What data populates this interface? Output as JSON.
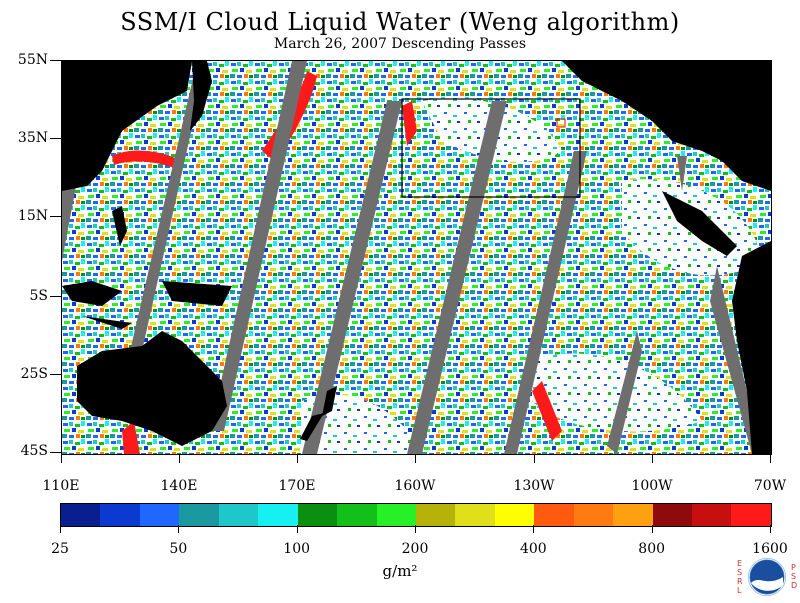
{
  "title": "SSM/I Cloud Liquid Water (Weng algorithm)",
  "subtitle": "March 26, 2007  Descending Passes",
  "lat_labels": [
    "55N",
    "35N",
    "15N",
    "5S",
    "25S",
    "45S"
  ],
  "lon_labels": [
    "110E",
    "140E",
    "170E",
    "160W",
    "130W",
    "100W",
    "70W"
  ],
  "colorbar": {
    "colors": [
      "#0a1f8f",
      "#0a3ad0",
      "#2067ff",
      "#1a9aa0",
      "#1fc8c8",
      "#17f0f0",
      "#0b8f10",
      "#13c01a",
      "#28f028",
      "#b5b20a",
      "#e0e01a",
      "#ffff00",
      "#ff5a10",
      "#ff7a10",
      "#ffa010",
      "#8f0a0a",
      "#c80f0f",
      "#ff1a1a"
    ],
    "labels": [
      "25",
      "50",
      "100",
      "200",
      "400",
      "800",
      "1600"
    ]
  },
  "units": "g/m²",
  "map": {
    "land_color": "#000000",
    "nodata_swath_color": "#6e6e6e",
    "ocean_background": "#ffffff"
  },
  "logo": {
    "left_letters": "ESRL",
    "right_letters": "PSD",
    "center": "NOAA"
  }
}
